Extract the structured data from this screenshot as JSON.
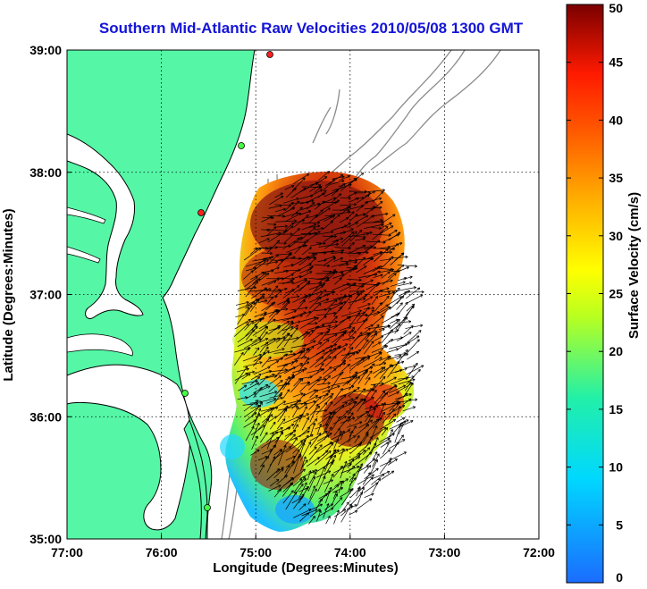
{
  "map": {
    "title": "Southern Mid-Atlantic Raw Velocities 2010/05/08 1300 GMT",
    "x_label": "Longitude (Degrees:Minutes)",
    "y_label": "Latitude (Degrees:Minutes)",
    "x_ticks": [
      "77:00",
      "76:00",
      "75:00",
      "74:00",
      "73:00",
      "72:00"
    ],
    "y_ticks": [
      "39:00",
      "38:00",
      "37:00",
      "36:00",
      "35:00"
    ],
    "grid": "dotted",
    "land_color": "#55f7a6",
    "bathymetry_color": "#8c8c8c",
    "site_markers": [
      "green",
      "green",
      "green",
      "red",
      "red"
    ]
  },
  "colorbar": {
    "label": "Surface Velocity (cm/s)",
    "ticks": [
      "50",
      "45",
      "40",
      "35",
      "30",
      "25",
      "20",
      "15",
      "10",
      "5",
      "0"
    ],
    "min": 0,
    "max": 50,
    "colormap": "jet"
  }
}
